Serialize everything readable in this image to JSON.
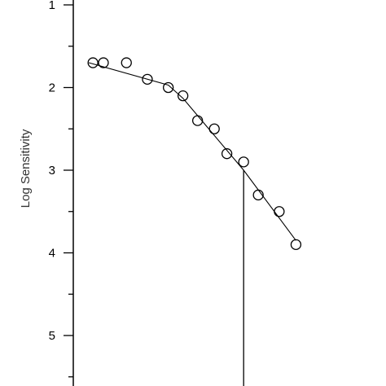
{
  "chart_data": {
    "type": "scatter",
    "title": "",
    "xlabel": "",
    "ylabel": "Log Sensitivity",
    "ylim": [
      1,
      5.5
    ],
    "y_inverted": true,
    "y_ticks": [
      1,
      2,
      3,
      4,
      5
    ],
    "y_tick_labels": [
      "1",
      "2",
      "3",
      "4",
      "5"
    ],
    "xlim": [
      0,
      100
    ],
    "points": [
      {
        "x": 2,
        "y": 1.7
      },
      {
        "x": 7,
        "y": 1.7
      },
      {
        "x": 18,
        "y": 1.7
      },
      {
        "x": 28,
        "y": 1.9
      },
      {
        "x": 38,
        "y": 2.0
      },
      {
        "x": 45,
        "y": 2.1
      },
      {
        "x": 52,
        "y": 2.4
      },
      {
        "x": 60,
        "y": 2.5
      },
      {
        "x": 66,
        "y": 2.8
      },
      {
        "x": 74,
        "y": 2.9
      },
      {
        "x": 81,
        "y": 3.3
      },
      {
        "x": 91,
        "y": 3.5
      },
      {
        "x": 99,
        "y": 3.9
      }
    ],
    "fit_line": [
      {
        "x": 0,
        "y": 1.7
      },
      {
        "x": 38,
        "y": 1.97
      },
      {
        "x": 45,
        "y": 2.13
      },
      {
        "x": 74,
        "y": 3.0
      },
      {
        "x": 99,
        "y": 3.85
      }
    ],
    "threshold": {
      "x": 74,
      "y": 3.0
    },
    "grid": false,
    "legend": "none"
  }
}
